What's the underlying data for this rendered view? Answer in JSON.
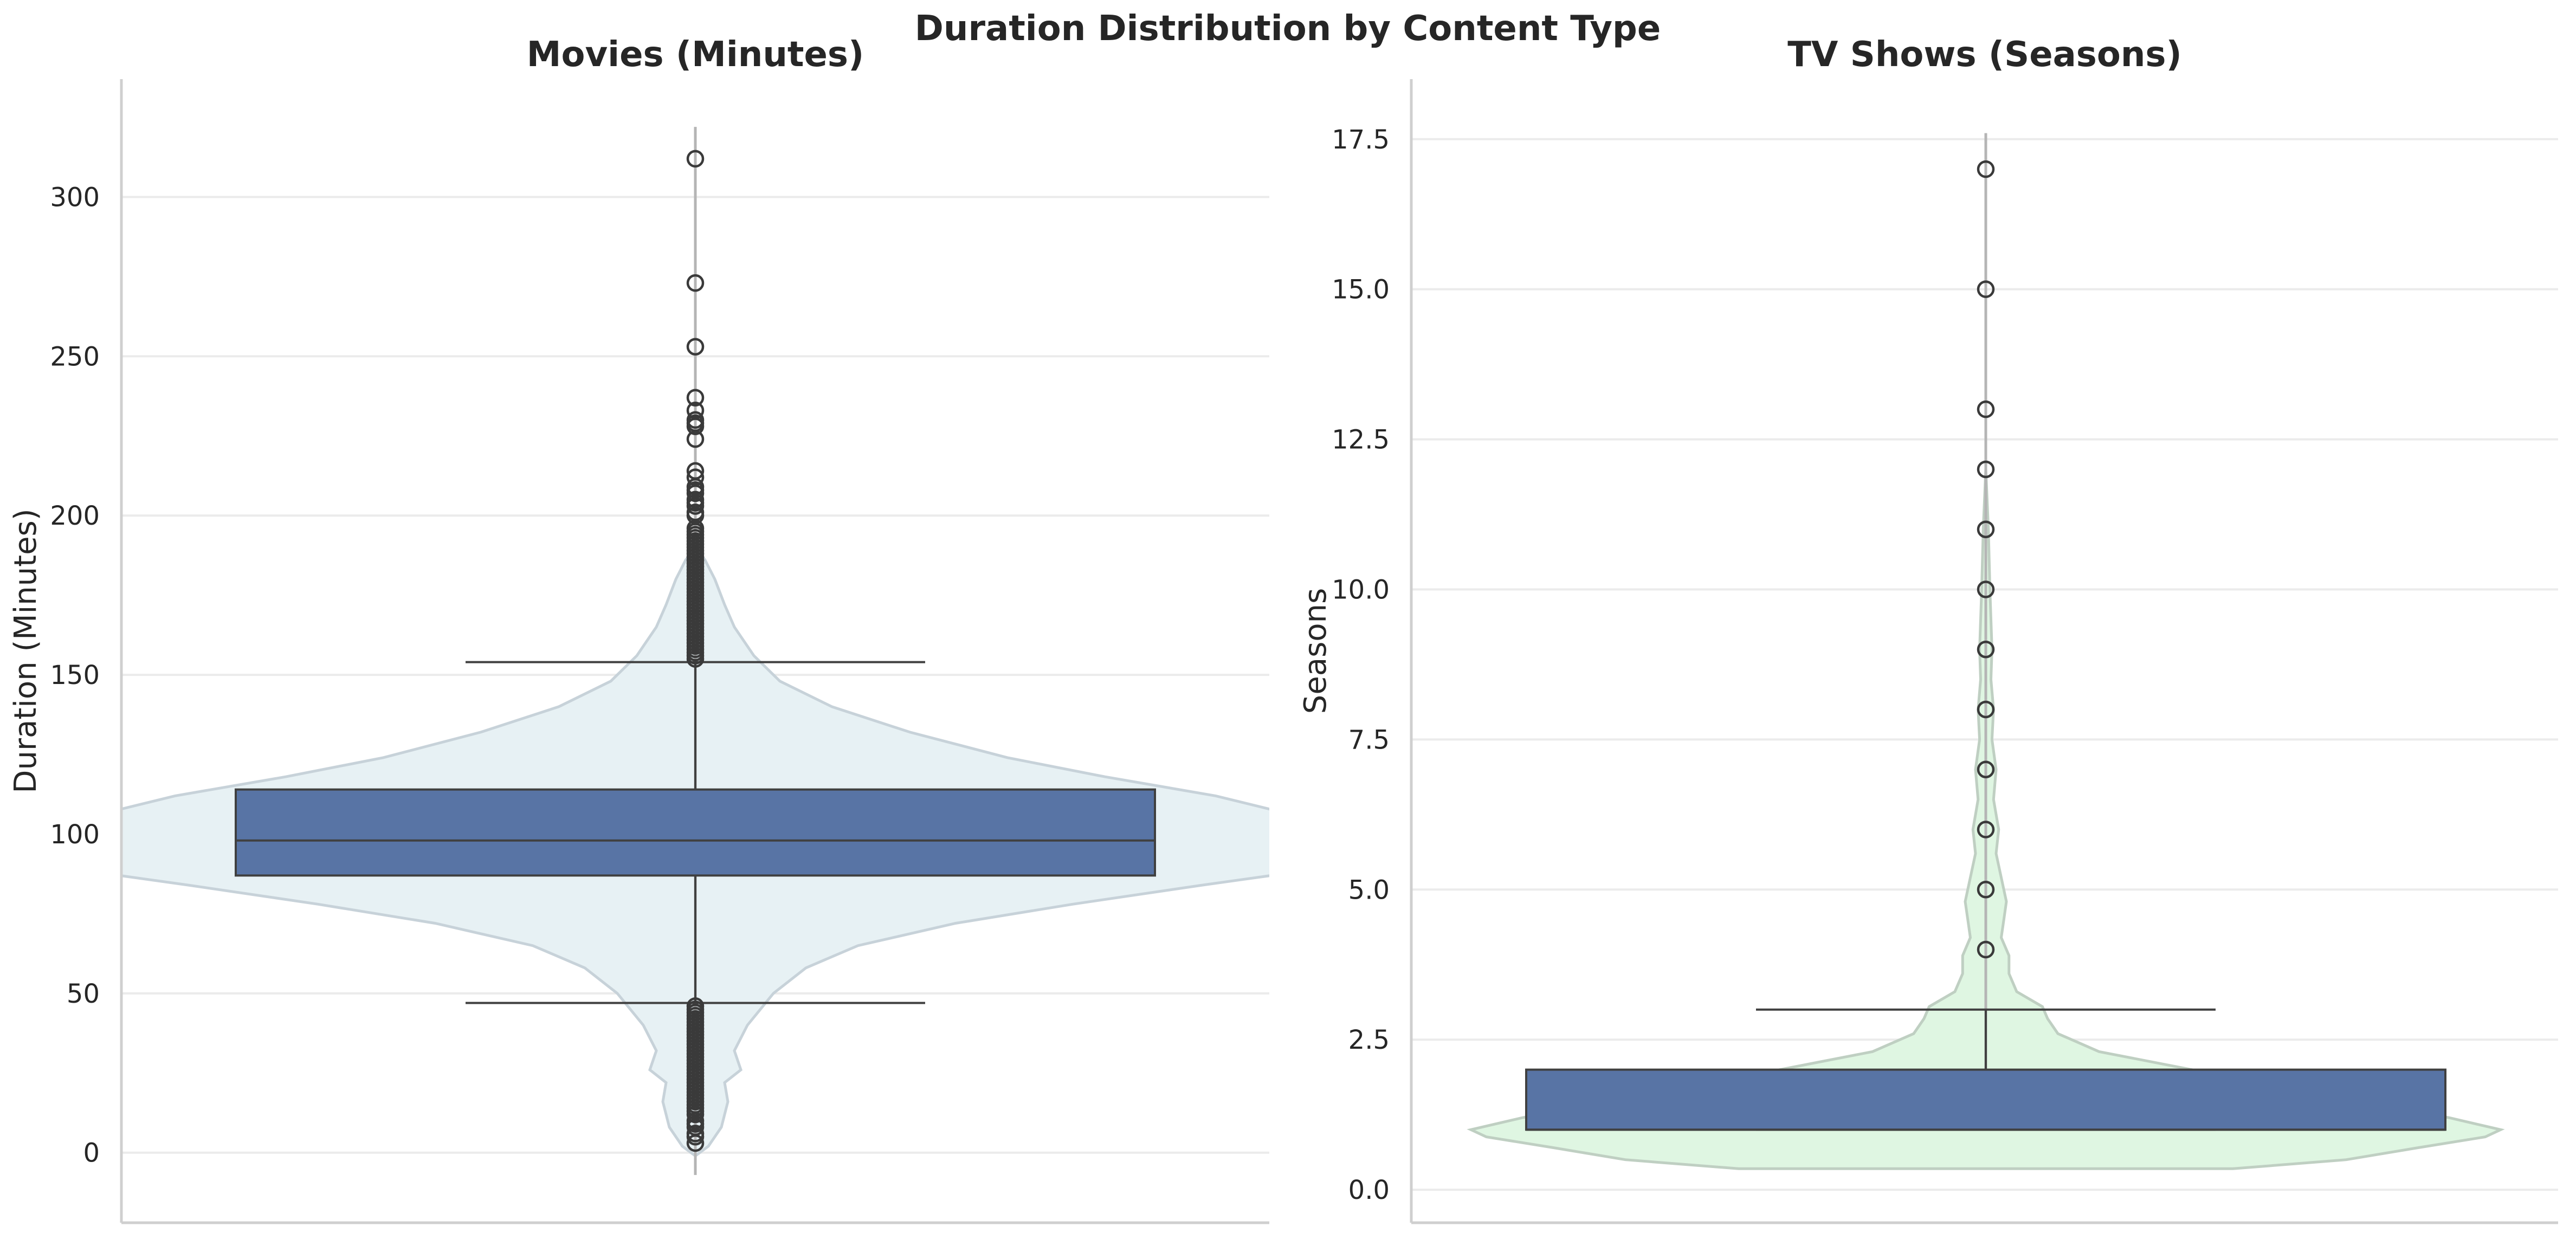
{
  "figure": {
    "title": "Duration Distribution by Content Type"
  },
  "chart_data": [
    {
      "type": "box",
      "title": "Movies (Minutes)",
      "xlabel": "",
      "ylabel": "Duration (Minutes)",
      "ylim": [
        -22,
        337
      ],
      "yticks": [
        0,
        50,
        100,
        150,
        200,
        250,
        300
      ],
      "grid": true,
      "colors": {
        "box": "#5874a5",
        "violin": "#e7f1f4",
        "violin_edge": "#c7d2d9",
        "line": "#404040",
        "grid": "#ebebeb",
        "axis": "#cfcfcf"
      },
      "box": {
        "q1": 87,
        "median": 98,
        "q3": 114,
        "whisker_low": 47,
        "whisker_high": 154
      },
      "range": [
        -7,
        322
      ],
      "outliers_high": [
        155,
        156,
        157,
        158,
        159,
        160,
        161,
        162,
        163,
        164,
        165,
        166,
        167,
        168,
        169,
        170,
        171,
        172,
        173,
        174,
        175,
        176,
        177,
        178,
        179,
        180,
        181,
        182,
        183,
        184,
        185,
        186,
        187,
        188,
        189,
        190,
        191,
        192,
        193,
        194,
        195,
        196,
        200,
        201,
        203,
        204,
        205,
        207,
        208,
        209,
        212,
        214,
        224,
        228,
        229,
        230,
        233,
        237,
        253,
        273,
        312
      ],
      "outliers_low": [
        3,
        5,
        6,
        8,
        9,
        10,
        12,
        13,
        14,
        15,
        16,
        17,
        18,
        19,
        20,
        21,
        22,
        23,
        24,
        25,
        26,
        27,
        28,
        29,
        30,
        31,
        32,
        33,
        34,
        35,
        36,
        37,
        38,
        39,
        40,
        41,
        42,
        43,
        44,
        45,
        46
      ],
      "violin_profile": [
        [
          -1,
          0.0
        ],
        [
          2,
          0.02
        ],
        [
          8,
          0.04
        ],
        [
          16,
          0.05
        ],
        [
          22,
          0.045
        ],
        [
          26,
          0.07
        ],
        [
          32,
          0.06
        ],
        [
          40,
          0.08
        ],
        [
          50,
          0.12
        ],
        [
          58,
          0.17
        ],
        [
          65,
          0.25
        ],
        [
          72,
          0.4
        ],
        [
          78,
          0.58
        ],
        [
          84,
          0.78
        ],
        [
          88,
          0.92
        ],
        [
          92,
          0.97
        ],
        [
          96,
          1.0
        ],
        [
          100,
          0.98
        ],
        [
          106,
          0.92
        ],
        [
          112,
          0.8
        ],
        [
          118,
          0.63
        ],
        [
          124,
          0.48
        ],
        [
          132,
          0.33
        ],
        [
          140,
          0.21
        ],
        [
          148,
          0.13
        ],
        [
          156,
          0.09
        ],
        [
          165,
          0.06
        ],
        [
          172,
          0.045
        ],
        [
          180,
          0.03
        ],
        [
          186,
          0.015
        ],
        [
          190,
          0.0
        ]
      ]
    },
    {
      "type": "box",
      "title": "TV Shows (Seasons)",
      "xlabel": "",
      "ylabel": "Seasons",
      "ylim": [
        -0.55,
        18.5
      ],
      "yticks": [
        0.0,
        2.5,
        5.0,
        7.5,
        10.0,
        12.5,
        15.0,
        17.5
      ],
      "tick_format": "0.0",
      "grid": true,
      "colors": {
        "box": "#5874a5",
        "violin": "#dff6e2",
        "violin_edge": "#bfcfc2",
        "line": "#404040",
        "grid": "#ebebeb",
        "axis": "#cfcfcf"
      },
      "box": {
        "q1": 1,
        "median": 1,
        "q3": 2,
        "whisker_low": 1,
        "whisker_high": 3
      },
      "range": [
        2.0,
        17.6
      ],
      "outliers_high": [
        4,
        5,
        6,
        7,
        8,
        9,
        10,
        11,
        12,
        13,
        15,
        17
      ],
      "outliers_low": [],
      "violin_profile": [
        [
          0.35,
          0.48
        ],
        [
          0.5,
          0.7
        ],
        [
          0.7,
          0.84
        ],
        [
          0.88,
          0.97
        ],
        [
          1.0,
          1.0
        ],
        [
          1.2,
          0.9
        ],
        [
          1.5,
          0.7
        ],
        [
          1.8,
          0.5
        ],
        [
          2.0,
          0.4
        ],
        [
          2.3,
          0.22
        ],
        [
          2.6,
          0.14
        ],
        [
          2.85,
          0.12
        ],
        [
          3.05,
          0.11
        ],
        [
          3.3,
          0.06
        ],
        [
          3.6,
          0.045
        ],
        [
          3.9,
          0.045
        ],
        [
          4.2,
          0.03
        ],
        [
          4.5,
          0.035
        ],
        [
          4.8,
          0.04
        ],
        [
          5.2,
          0.03
        ],
        [
          5.6,
          0.02
        ],
        [
          6.0,
          0.025
        ],
        [
          6.5,
          0.015
        ],
        [
          7.0,
          0.02
        ],
        [
          7.5,
          0.012
        ],
        [
          8.0,
          0.015
        ],
        [
          8.5,
          0.01
        ],
        [
          9.0,
          0.012
        ],
        [
          10.0,
          0.008
        ],
        [
          11.0,
          0.005
        ],
        [
          12.0,
          0.0
        ]
      ]
    }
  ]
}
